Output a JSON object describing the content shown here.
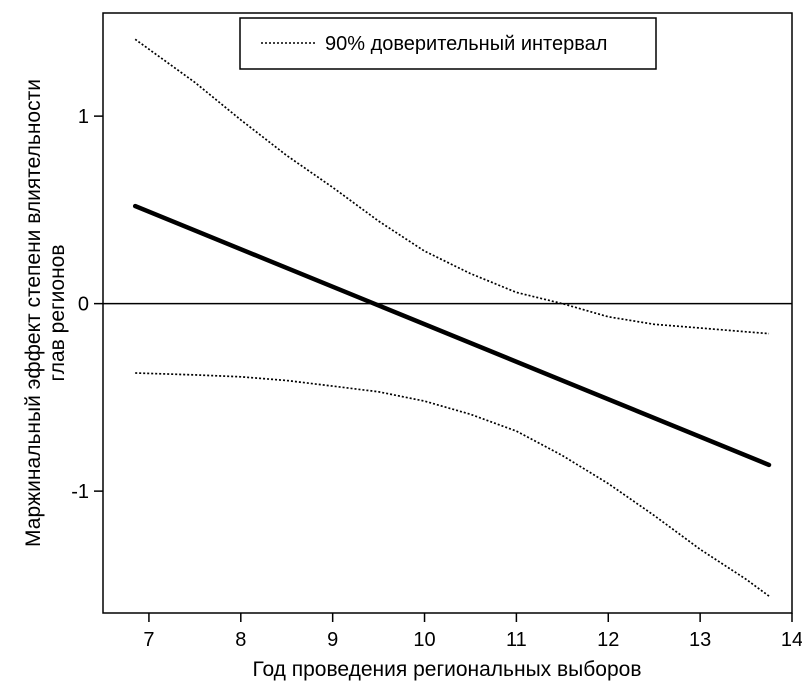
{
  "chart_data": {
    "type": "line",
    "title": "",
    "xlabel": "Год проведения региональных выборов",
    "ylabel_lines": [
      "Маржинальный эффект степени влиятельности",
      "глав регионов"
    ],
    "xlim": [
      6.5,
      14.0
    ],
    "ylim": [
      -1.65,
      1.55
    ],
    "x_ticks": [
      7,
      8,
      9,
      10,
      11,
      12,
      13,
      14
    ],
    "y_ticks": [
      -1,
      0,
      1
    ],
    "y_tick_labels": [
      "-1",
      "0",
      "1"
    ],
    "reference_line_y": 0,
    "legend": {
      "position": "top-center",
      "entries": [
        "90% доверительный интервал"
      ]
    },
    "series": [
      {
        "role": "estimate",
        "style": "solid-thick",
        "x": [
          6.85,
          13.75
        ],
        "y": [
          0.52,
          -0.86
        ]
      },
      {
        "role": "ci-upper",
        "style": "dotted",
        "x": [
          6.85,
          7.5,
          8.0,
          8.5,
          9.0,
          9.5,
          10.0,
          10.5,
          11.0,
          11.5,
          12.0,
          12.5,
          13.0,
          13.5,
          13.75
        ],
        "y": [
          1.41,
          1.18,
          0.98,
          0.79,
          0.62,
          0.44,
          0.28,
          0.16,
          0.06,
          0.0,
          -0.07,
          -0.11,
          -0.13,
          -0.15,
          -0.16
        ]
      },
      {
        "role": "ci-lower",
        "style": "dotted",
        "x": [
          6.85,
          7.5,
          8.0,
          8.5,
          9.0,
          9.5,
          10.0,
          10.5,
          11.0,
          11.5,
          12.0,
          12.5,
          13.0,
          13.5,
          13.75
        ],
        "y": [
          -0.37,
          -0.38,
          -0.39,
          -0.41,
          -0.44,
          -0.47,
          -0.52,
          -0.59,
          -0.68,
          -0.81,
          -0.96,
          -1.13,
          -1.31,
          -1.47,
          -1.56
        ]
      }
    ]
  }
}
